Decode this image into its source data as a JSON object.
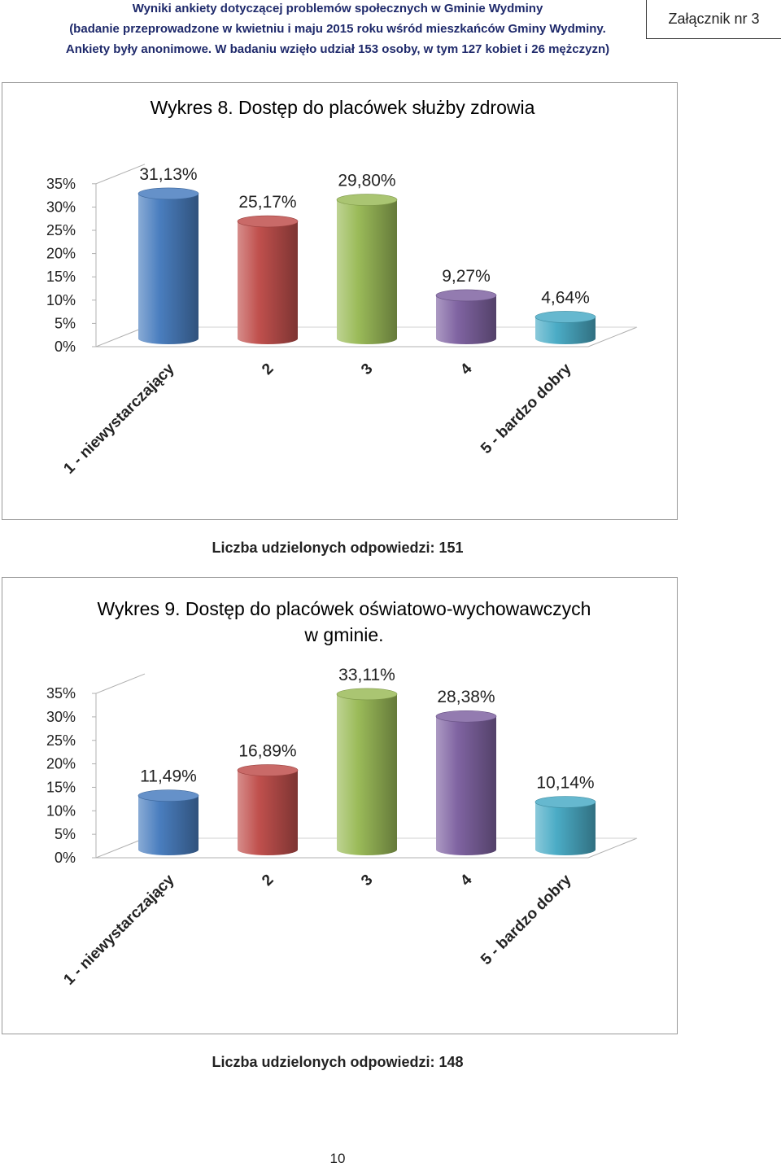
{
  "header": {
    "line1": "Wyniki ankiety dotyczącej problemów społecznych w Gminie Wydminy",
    "line2": "(badanie przeprowadzone w kwietniu i maju 2015 roku wśród mieszkańców Gminy Wydminy.",
    "line3": "Ankiety były anonimowe. W badaniu wzięło udział 153 osoby, w tym 127 kobiet i 26 mężczyzn)",
    "annex": "Załącznik nr 3"
  },
  "page_number": "10",
  "chart_data": [
    {
      "type": "bar",
      "title": "Wykres 8. Dostęp do placówek służby zdrowia",
      "title_line2": "",
      "categories": [
        "1 - niewystarczający",
        "2",
        "3",
        "4",
        "5 - bardzo dobry"
      ],
      "values": [
        31.13,
        25.17,
        29.8,
        9.27,
        4.64
      ],
      "value_labels": [
        "31,13%",
        "25,17%",
        "29,80%",
        "9,27%",
        "4,64%"
      ],
      "y_ticks": [
        "0%",
        "5%",
        "10%",
        "15%",
        "20%",
        "25%",
        "30%",
        "35%"
      ],
      "ylim": [
        0,
        35
      ],
      "grid": false,
      "bar_colors": [
        "#4a7ebf",
        "#c0504d",
        "#9bbb59",
        "#8064a2",
        "#4bacc6"
      ],
      "caption": "Liczba udzielonych odpowiedzi: 151"
    },
    {
      "type": "bar",
      "title": "Wykres 9. Dostęp do placówek oświatowo-wychowawczych",
      "title_line2": "w gminie.",
      "categories": [
        "1 - niewystarczający",
        "2",
        "3",
        "4",
        "5 - bardzo dobry"
      ],
      "values": [
        11.49,
        16.89,
        33.11,
        28.38,
        10.14
      ],
      "value_labels": [
        "11,49%",
        "16,89%",
        "33,11%",
        "28,38%",
        "10,14%"
      ],
      "y_ticks": [
        "0%",
        "5%",
        "10%",
        "15%",
        "20%",
        "25%",
        "30%",
        "35%"
      ],
      "ylim": [
        0,
        35
      ],
      "grid": false,
      "bar_colors": [
        "#4a7ebf",
        "#c0504d",
        "#9bbb59",
        "#8064a2",
        "#4bacc6"
      ],
      "caption": "Liczba udzielonych odpowiedzi: 148"
    }
  ]
}
